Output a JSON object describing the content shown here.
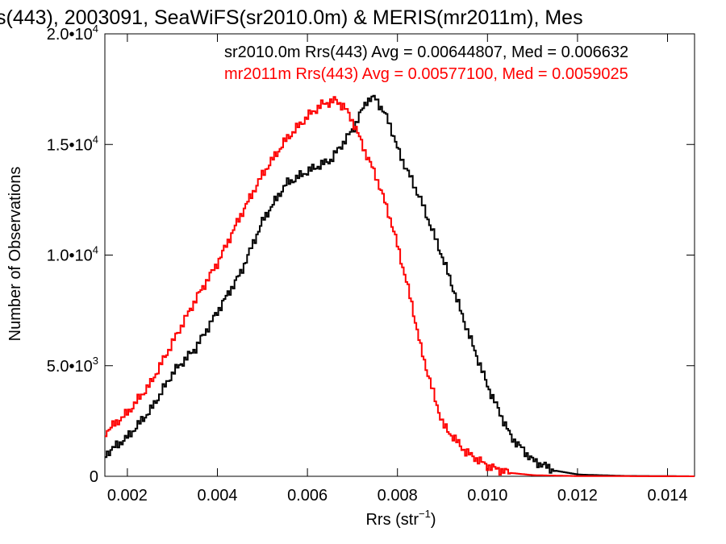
{
  "chart_data": {
    "type": "line",
    "title": "s(443), 2003091, SeaWiFS(sr2010.0m) & MERIS(mr2011m), Mes",
    "xlabel": "Rrs (str",
    "xlabel_sup": "−1",
    "xlabel_close": ")",
    "ylabel": "Number of Observations",
    "xlim": [
      0.0015,
      0.0146
    ],
    "ylim": [
      0,
      20000
    ],
    "xticks": [
      {
        "v": 0.002,
        "label": "0.002"
      },
      {
        "v": 0.004,
        "label": "0.004"
      },
      {
        "v": 0.006,
        "label": "0.006"
      },
      {
        "v": 0.008,
        "label": "0.008"
      },
      {
        "v": 0.01,
        "label": "0.010"
      },
      {
        "v": 0.012,
        "label": "0.012"
      },
      {
        "v": 0.014,
        "label": "0.014"
      }
    ],
    "yticks": [
      {
        "v": 0,
        "label": "0",
        "exp": ""
      },
      {
        "v": 5000,
        "label": "5.0•10",
        "exp": "3"
      },
      {
        "v": 10000,
        "label": "1.0•10",
        "exp": "4"
      },
      {
        "v": 15000,
        "label": "1.5•10",
        "exp": "4"
      },
      {
        "v": 20000,
        "label": "2.0•10",
        "exp": "4"
      }
    ],
    "series": [
      {
        "name": "sr2010.0m",
        "color": "#000000",
        "legend": "sr2010.0m Rrs(443) Avg = 0.00644807, Med = 0.006632",
        "points": [
          [
            0.0015,
            1000
          ],
          [
            0.002,
            1800
          ],
          [
            0.0025,
            3000
          ],
          [
            0.003,
            4700
          ],
          [
            0.0035,
            5800
          ],
          [
            0.004,
            7500
          ],
          [
            0.0045,
            9200
          ],
          [
            0.005,
            11600
          ],
          [
            0.0055,
            13200
          ],
          [
            0.006,
            13800
          ],
          [
            0.0065,
            14300
          ],
          [
            0.007,
            15700
          ],
          [
            0.0073,
            17000
          ],
          [
            0.0075,
            17100
          ],
          [
            0.0078,
            16000
          ],
          [
            0.008,
            14700
          ],
          [
            0.0085,
            12500
          ],
          [
            0.009,
            9800
          ],
          [
            0.0095,
            6800
          ],
          [
            0.01,
            4000
          ],
          [
            0.0105,
            1800
          ],
          [
            0.011,
            700
          ],
          [
            0.0115,
            250
          ],
          [
            0.012,
            80
          ],
          [
            0.013,
            20
          ],
          [
            0.0146,
            0
          ]
        ]
      },
      {
        "name": "mr2011m",
        "color": "#ff0000",
        "legend": "mr2011m Rrs(443) Avg = 0.00577100, Med = 0.0059025",
        "points": [
          [
            0.0015,
            2000
          ],
          [
            0.002,
            2900
          ],
          [
            0.0025,
            4200
          ],
          [
            0.003,
            6100
          ],
          [
            0.0035,
            8000
          ],
          [
            0.004,
            9700
          ],
          [
            0.0045,
            11800
          ],
          [
            0.005,
            13700
          ],
          [
            0.0055,
            15200
          ],
          [
            0.006,
            16300
          ],
          [
            0.0063,
            16800
          ],
          [
            0.0066,
            17000
          ],
          [
            0.0068,
            16700
          ],
          [
            0.007,
            16000
          ],
          [
            0.0073,
            14500
          ],
          [
            0.0075,
            13600
          ],
          [
            0.0078,
            11800
          ],
          [
            0.008,
            10300
          ],
          [
            0.0083,
            7800
          ],
          [
            0.0085,
            5800
          ],
          [
            0.0088,
            3600
          ],
          [
            0.009,
            2300
          ],
          [
            0.0095,
            1100
          ],
          [
            0.01,
            450
          ],
          [
            0.0105,
            150
          ],
          [
            0.011,
            50
          ],
          [
            0.012,
            10
          ],
          [
            0.0146,
            0
          ]
        ]
      }
    ]
  }
}
